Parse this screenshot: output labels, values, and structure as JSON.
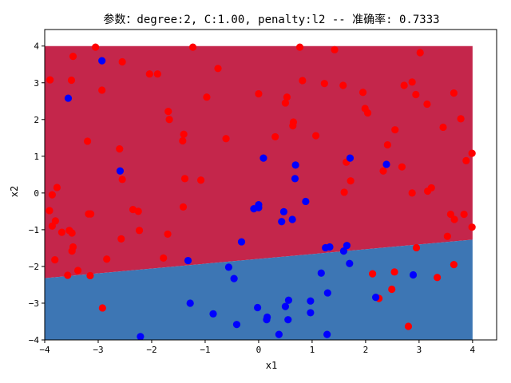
{
  "chart_data": {
    "type": "scatter",
    "title": "参数：degree:2, C:1.00, penalty:l2 -- 准确率: 0.7333",
    "xlabel": "x1",
    "ylabel": "x2",
    "xlim": [
      -4.0,
      4.45
    ],
    "ylim": [
      -4.0,
      4.45
    ],
    "xticks": [
      -4,
      -3,
      -2,
      -1,
      0,
      1,
      2,
      3,
      4
    ],
    "yticks": [
      -4,
      -3,
      -2,
      -1,
      0,
      1,
      2,
      3,
      4
    ],
    "grid": false,
    "legend": "none",
    "decision_regions": {
      "extent": {
        "x": [
          -4,
          4
        ],
        "y": [
          -4,
          4
        ]
      },
      "boundary_line": [
        [
          -4,
          -2.32
        ],
        [
          4,
          -1.27
        ]
      ],
      "upper_color": "#c4264b",
      "lower_color": "#3d76b4"
    },
    "series": [
      {
        "color": "#ff0000",
        "points": [
          [
            -3.05,
            3.97
          ],
          [
            -1.23,
            3.97
          ],
          [
            0.77,
            3.97
          ],
          [
            1.42,
            3.9
          ],
          [
            3.02,
            3.82
          ],
          [
            -3.47,
            3.72
          ],
          [
            -2.55,
            3.57
          ],
          [
            -1.89,
            3.24
          ],
          [
            -2.04,
            3.24
          ],
          [
            -3.9,
            3.08
          ],
          [
            -3.5,
            3.07
          ],
          [
            -0.76,
            3.39
          ],
          [
            0.82,
            3.06
          ],
          [
            1.23,
            2.98
          ],
          [
            1.58,
            2.93
          ],
          [
            2.72,
            2.93
          ],
          [
            2.87,
            3.02
          ],
          [
            -2.93,
            2.8
          ],
          [
            -0.97,
            2.61
          ],
          [
            0.0,
            2.7
          ],
          [
            0.53,
            2.61
          ],
          [
            0.5,
            2.45
          ],
          [
            1.95,
            2.74
          ],
          [
            2.94,
            2.68
          ],
          [
            3.15,
            2.42
          ],
          [
            3.65,
            2.72
          ],
          [
            -1.69,
            2.22
          ],
          [
            -1.67,
            2.0
          ],
          [
            0.65,
            1.93
          ],
          [
            0.64,
            1.83
          ],
          [
            1.99,
            2.3
          ],
          [
            2.04,
            2.18
          ],
          [
            3.45,
            1.79
          ],
          [
            3.78,
            2.02
          ],
          [
            -3.2,
            1.41
          ],
          [
            -0.61,
            1.48
          ],
          [
            0.31,
            1.53
          ],
          [
            1.07,
            1.56
          ],
          [
            2.55,
            1.72
          ],
          [
            -1.4,
            1.6
          ],
          [
            -1.42,
            1.42
          ],
          [
            2.41,
            1.31
          ],
          [
            1.64,
            0.84
          ],
          [
            3.99,
            1.08
          ],
          [
            3.88,
            0.88
          ],
          [
            -2.6,
            1.2
          ],
          [
            -3.77,
            0.15
          ],
          [
            -2.55,
            0.37
          ],
          [
            -1.38,
            0.39
          ],
          [
            -1.08,
            0.35
          ],
          [
            1.72,
            0.33
          ],
          [
            2.33,
            0.6
          ],
          [
            2.68,
            0.71
          ],
          [
            -3.86,
            -0.05
          ],
          [
            1.6,
            0.02
          ],
          [
            2.87,
            0.0
          ],
          [
            3.16,
            0.05
          ],
          [
            3.23,
            0.14
          ],
          [
            -2.35,
            -0.45
          ],
          [
            -2.25,
            -0.5
          ],
          [
            -1.41,
            -0.38
          ],
          [
            -3.91,
            -0.48
          ],
          [
            -3.86,
            -0.9
          ],
          [
            -3.8,
            -0.76
          ],
          [
            -3.68,
            -1.07
          ],
          [
            -3.18,
            -0.57
          ],
          [
            -3.14,
            -0.57
          ],
          [
            -3.54,
            -1.02
          ],
          [
            -3.49,
            -1.09
          ],
          [
            -2.23,
            -1.02
          ],
          [
            -1.7,
            -1.12
          ],
          [
            -2.57,
            -1.25
          ],
          [
            3.59,
            -0.58
          ],
          [
            3.66,
            -0.72
          ],
          [
            3.84,
            -0.58
          ],
          [
            3.99,
            -0.93
          ],
          [
            3.53,
            -1.18
          ],
          [
            -3.47,
            -1.47
          ],
          [
            -3.49,
            -1.58
          ],
          [
            -3.81,
            -1.82
          ],
          [
            -2.84,
            -1.8
          ],
          [
            -1.78,
            -1.77
          ],
          [
            -3.57,
            -2.24
          ],
          [
            -3.38,
            -2.11
          ],
          [
            -3.15,
            -2.25
          ],
          [
            2.95,
            -1.49
          ],
          [
            3.65,
            -1.95
          ],
          [
            2.13,
            -2.2
          ],
          [
            2.54,
            -2.15
          ],
          [
            3.34,
            -2.3
          ],
          [
            2.25,
            -2.87
          ],
          [
            2.49,
            -2.62
          ],
          [
            -2.92,
            -3.13
          ],
          [
            2.8,
            -3.63
          ]
        ]
      },
      {
        "color": "#0000ff",
        "points": [
          [
            -2.93,
            3.6
          ],
          [
            -3.56,
            2.58
          ],
          [
            -2.59,
            0.6
          ],
          [
            0.09,
            0.95
          ],
          [
            1.71,
            0.95
          ],
          [
            2.39,
            0.78
          ],
          [
            0.69,
            0.76
          ],
          [
            0.68,
            0.39
          ],
          [
            0.88,
            -0.23
          ],
          [
            -0.09,
            -0.43
          ],
          [
            0.0,
            -0.32
          ],
          [
            0.0,
            -0.4
          ],
          [
            0.47,
            -0.51
          ],
          [
            0.43,
            -0.78
          ],
          [
            0.63,
            -0.72
          ],
          [
            -0.32,
            -1.33
          ],
          [
            1.25,
            -1.49
          ],
          [
            1.33,
            -1.47
          ],
          [
            1.65,
            -1.43
          ],
          [
            1.59,
            -1.58
          ],
          [
            1.7,
            -1.92
          ],
          [
            -1.32,
            -1.84
          ],
          [
            -0.56,
            -2.02
          ],
          [
            -0.46,
            -2.33
          ],
          [
            1.17,
            -2.18
          ],
          [
            2.19,
            -2.84
          ],
          [
            2.89,
            -2.23
          ],
          [
            1.29,
            -2.72
          ],
          [
            -1.28,
            -3.0
          ],
          [
            0.56,
            -2.92
          ],
          [
            0.97,
            -2.94
          ],
          [
            0.5,
            -3.09
          ],
          [
            -0.02,
            -3.12
          ],
          [
            0.97,
            -3.26
          ],
          [
            -0.85,
            -3.29
          ],
          [
            0.16,
            -3.38
          ],
          [
            0.15,
            -3.45
          ],
          [
            0.55,
            -3.45
          ],
          [
            -0.41,
            -3.58
          ],
          [
            0.38,
            -3.85
          ],
          [
            1.28,
            -3.85
          ],
          [
            -2.21,
            -3.91
          ]
        ]
      }
    ]
  }
}
